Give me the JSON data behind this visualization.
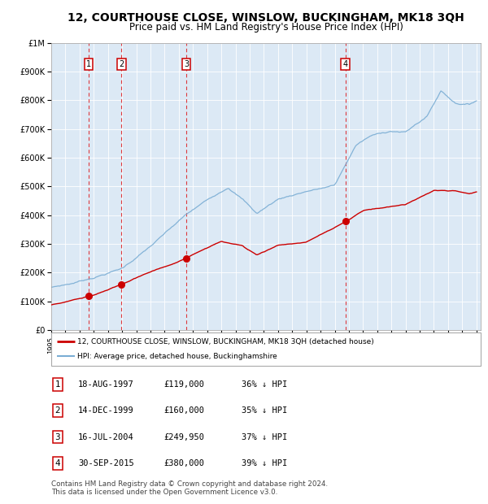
{
  "title": "12, COURTHOUSE CLOSE, WINSLOW, BUCKINGHAM, MK18 3QH",
  "subtitle": "Price paid vs. HM Land Registry's House Price Index (HPI)",
  "title_fontsize": 10,
  "subtitle_fontsize": 8.5,
  "background_color": "#dce9f5",
  "red_line_color": "#cc0000",
  "blue_line_color": "#7aadd4",
  "sale_points": [
    {
      "date_num": 1997.63,
      "price": 119000,
      "label": "1"
    },
    {
      "date_num": 1999.95,
      "price": 160000,
      "label": "2"
    },
    {
      "date_num": 2004.54,
      "price": 249950,
      "label": "3"
    },
    {
      "date_num": 2015.75,
      "price": 380000,
      "label": "4"
    }
  ],
  "legend_entries": [
    "12, COURTHOUSE CLOSE, WINSLOW, BUCKINGHAM, MK18 3QH (detached house)",
    "HPI: Average price, detached house, Buckinghamshire"
  ],
  "table_rows": [
    [
      "1",
      "18-AUG-1997",
      "£119,000",
      "36% ↓ HPI"
    ],
    [
      "2",
      "14-DEC-1999",
      "£160,000",
      "35% ↓ HPI"
    ],
    [
      "3",
      "16-JUL-2004",
      "£249,950",
      "37% ↓ HPI"
    ],
    [
      "4",
      "30-SEP-2015",
      "£380,000",
      "39% ↓ HPI"
    ]
  ],
  "footer": "Contains HM Land Registry data © Crown copyright and database right 2024.\nThis data is licensed under the Open Government Licence v3.0.",
  "ylim": [
    0,
    1000000
  ],
  "yticks": [
    0,
    100000,
    200000,
    300000,
    400000,
    500000,
    600000,
    700000,
    800000,
    900000,
    1000000
  ],
  "ytick_labels": [
    "£0",
    "£100K",
    "£200K",
    "£300K",
    "£400K",
    "£500K",
    "£600K",
    "£700K",
    "£800K",
    "£900K",
    "£1M"
  ],
  "xlim": [
    1995,
    2025.3
  ],
  "xticks": [
    1995,
    1996,
    1997,
    1998,
    1999,
    2000,
    2001,
    2002,
    2003,
    2004,
    2005,
    2006,
    2007,
    2008,
    2009,
    2010,
    2011,
    2012,
    2013,
    2014,
    2015,
    2016,
    2017,
    2018,
    2019,
    2020,
    2021,
    2022,
    2023,
    2024,
    2025
  ]
}
